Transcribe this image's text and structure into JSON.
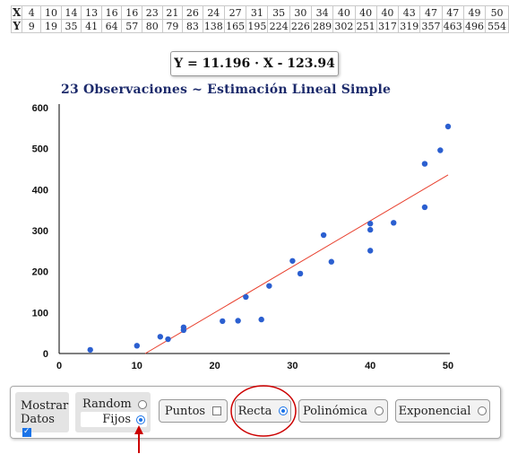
{
  "table": {
    "x_label": "X",
    "y_label": "Y",
    "x": [
      "4",
      "10",
      "14",
      "13",
      "16",
      "16",
      "23",
      "21",
      "26",
      "24",
      "27",
      "31",
      "35",
      "30",
      "34",
      "40",
      "40",
      "40",
      "43",
      "47",
      "47",
      "49",
      "50"
    ],
    "y": [
      "9",
      "19",
      "35",
      "41",
      "64",
      "57",
      "80",
      "79",
      "83",
      "138",
      "165",
      "195",
      "224",
      "226",
      "289",
      "302",
      "251",
      "317",
      "319",
      "357",
      "463",
      "496",
      "554"
    ]
  },
  "equation": "Y = 11.196 · X - 123.94",
  "chart_title": "23 Observaciones ~ Estimación Lineal Simple",
  "chart_data": {
    "type": "scatter",
    "title": "23 Observaciones ~ Estimación Lineal Simple",
    "xlim": [
      0,
      50
    ],
    "ylim": [
      0,
      600
    ],
    "x_ticks": [
      0,
      10,
      20,
      30,
      40,
      50
    ],
    "y_ticks": [
      0,
      100,
      200,
      300,
      400,
      500,
      600
    ],
    "grid": false,
    "points": [
      [
        4,
        9
      ],
      [
        10,
        19
      ],
      [
        14,
        35
      ],
      [
        13,
        41
      ],
      [
        16,
        64
      ],
      [
        16,
        57
      ],
      [
        23,
        80
      ],
      [
        21,
        79
      ],
      [
        26,
        83
      ],
      [
        24,
        138
      ],
      [
        27,
        165
      ],
      [
        31,
        195
      ],
      [
        35,
        224
      ],
      [
        30,
        226
      ],
      [
        34,
        289
      ],
      [
        40,
        302
      ],
      [
        40,
        251
      ],
      [
        40,
        317
      ],
      [
        43,
        319
      ],
      [
        47,
        357
      ],
      [
        47,
        463
      ],
      [
        49,
        496
      ],
      [
        50,
        554
      ]
    ],
    "fit_line": {
      "slope": 11.196,
      "intercept": -123.94
    },
    "colors": {
      "points": "#2b5fd0",
      "line": "#e8402e",
      "axis": "#000000"
    }
  },
  "controls": {
    "mostrar_line1": "Mostrar",
    "mostrar_line2": "Datos",
    "mostrar_checked": true,
    "random_label": "Random",
    "fijos_label": "Fijos",
    "fijos_selected": true,
    "puntos_label": "Puntos",
    "recta_label": "Recta",
    "recta_selected": true,
    "polinomica_label": "Polinómica",
    "exponencial_label": "Exponencial"
  },
  "colors": {
    "annotation": "#cc0000",
    "accent": "#1a73e8"
  }
}
